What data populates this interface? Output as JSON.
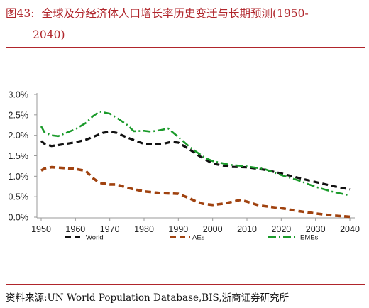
{
  "header": {
    "figure_number": "图43:",
    "title_line1": "全球及分经济体人口增长率历史变迁与长期预测(1950-",
    "title_line2": "2040)"
  },
  "footer": {
    "source": "资料来源:UN World Population Database,BIS,浙商证券研究所"
  },
  "colors": {
    "title": "#b0252b",
    "world": "#111111",
    "aes": "#a0420f",
    "emes": "#1a9a2a",
    "axis": "#9a9a9a"
  },
  "chart_data": {
    "type": "line",
    "title": "",
    "xlabel": "",
    "ylabel": "",
    "xlim": [
      1950,
      2040
    ],
    "ylim": [
      0,
      3.0
    ],
    "x_ticks": [
      "1950",
      "1960",
      "1970",
      "1980",
      "1990",
      "2000",
      "2010",
      "2020",
      "2030",
      "2040"
    ],
    "y_ticks": [
      "0.0%",
      "0.5%",
      "1.0%",
      "1.5%",
      "2.0%",
      "2.5%",
      "3.0%"
    ],
    "grid": false,
    "legend_position": "bottom",
    "series": [
      {
        "name": "World",
        "style": "dashed",
        "x": [
          1950,
          1951,
          1953,
          1955,
          1960,
          1963,
          1966,
          1968,
          1970,
          1972,
          1975,
          1980,
          1983,
          1986,
          1988,
          1990,
          1993,
          1996,
          2000,
          2005,
          2010,
          2015,
          2020,
          2025,
          2030,
          2035,
          2040
        ],
        "values": [
          1.86,
          1.79,
          1.74,
          1.76,
          1.83,
          1.89,
          1.99,
          2.06,
          2.09,
          2.06,
          1.95,
          1.79,
          1.78,
          1.8,
          1.84,
          1.82,
          1.67,
          1.5,
          1.31,
          1.23,
          1.22,
          1.16,
          1.07,
          0.96,
          0.86,
          0.76,
          0.68
        ]
      },
      {
        "name": "AEs",
        "style": "dashed",
        "x": [
          1950,
          1951,
          1953,
          1955,
          1960,
          1963,
          1965,
          1967,
          1970,
          1972,
          1975,
          1980,
          1985,
          1990,
          1993,
          1995,
          1997,
          2000,
          2003,
          2006,
          2008,
          2010,
          2013,
          2015,
          2020,
          2025,
          2030,
          2035,
          2040
        ],
        "values": [
          1.14,
          1.19,
          1.22,
          1.21,
          1.18,
          1.13,
          0.96,
          0.84,
          0.8,
          0.8,
          0.72,
          0.63,
          0.59,
          0.57,
          0.47,
          0.39,
          0.33,
          0.3,
          0.33,
          0.38,
          0.42,
          0.38,
          0.3,
          0.27,
          0.22,
          0.15,
          0.09,
          0.04,
          0.01
        ]
      },
      {
        "name": "EMEs",
        "style": "dash-dot",
        "x": [
          1950,
          1951,
          1953,
          1955,
          1960,
          1963,
          1965,
          1967,
          1970,
          1972,
          1975,
          1977,
          1980,
          1982,
          1985,
          1987,
          1990,
          1993,
          1995,
          1998,
          2000,
          2005,
          2010,
          2015,
          2020,
          2025,
          2030,
          2035,
          2040
        ],
        "values": [
          2.22,
          2.07,
          2.0,
          1.98,
          2.15,
          2.3,
          2.46,
          2.58,
          2.53,
          2.43,
          2.26,
          2.1,
          2.11,
          2.09,
          2.13,
          2.17,
          1.96,
          1.74,
          1.61,
          1.44,
          1.37,
          1.28,
          1.24,
          1.18,
          1.03,
          0.9,
          0.74,
          0.62,
          0.53
        ]
      }
    ]
  }
}
